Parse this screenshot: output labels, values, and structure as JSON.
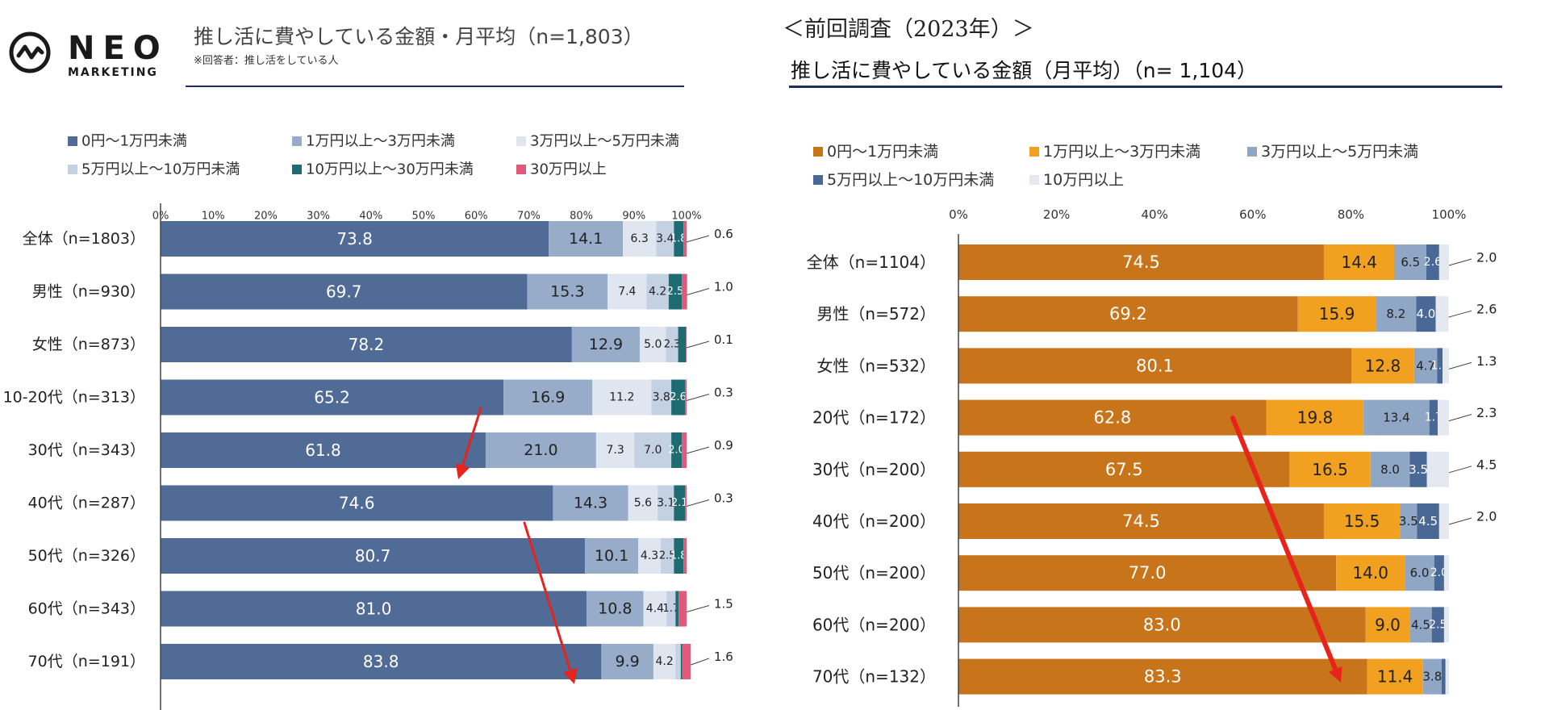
{
  "header": {
    "logo_name": "NEO",
    "logo_sub": "MARKETING",
    "left_title": "推し活に費やしている金額・月平均（n=1,803）",
    "left_note": "※回答者：推し活をしている人",
    "previous_label": "＜前回調査（2023年）＞",
    "right_title": "推し活に費やしている金額（月平均）（n= 1,104）"
  },
  "chart_data": [
    {
      "type": "bar",
      "orientation": "horizontal-stacked-100",
      "title": "推し活に費やしている金額・月平均（n=1,803）",
      "xlim": [
        0,
        100
      ],
      "x_ticks": [
        "0%",
        "10%",
        "20%",
        "30%",
        "40%",
        "50%",
        "60%",
        "70%",
        "80%",
        "90%",
        "100%"
      ],
      "categories": [
        "全体（n=1803）",
        "男性（n=930）",
        "女性（n=873）",
        "10-20代（n=313）",
        "30代（n=343）",
        "40代（n=287）",
        "50代（n=326）",
        "60代（n=343）",
        "70代（n=191）"
      ],
      "series": [
        {
          "name": "0円～1万円未満",
          "color": "#4f6b96",
          "values": [
            73.8,
            69.7,
            78.2,
            65.2,
            61.8,
            74.6,
            80.7,
            81.0,
            83.8
          ]
        },
        {
          "name": "1万円以上～3万円未満",
          "color": "#97acc9",
          "values": [
            14.1,
            15.3,
            12.9,
            16.9,
            21.0,
            14.3,
            10.1,
            10.8,
            9.9
          ]
        },
        {
          "name": "3万円以上～5万円未満",
          "color": "#dfe6f0",
          "values": [
            6.3,
            7.4,
            5.0,
            11.2,
            7.3,
            5.6,
            4.3,
            4.4,
            4.2
          ]
        },
        {
          "name": "5万円以上～10万円未満",
          "color": "#c4d1e2",
          "values": [
            3.4,
            4.2,
            2.3,
            3.8,
            7.0,
            3.1,
            2.5,
            1.7,
            1.0
          ]
        },
        {
          "name": "10万円以上～30万円未満",
          "color": "#1f6b72",
          "values": [
            1.8,
            2.5,
            1.5,
            2.6,
            2.0,
            2.1,
            1.8,
            0.6,
            0.3
          ]
        },
        {
          "name": "30万円以上",
          "color": "#e05a7a",
          "values": [
            0.6,
            1.0,
            0.1,
            0.3,
            0.9,
            0.3,
            0.6,
            1.5,
            1.6
          ]
        }
      ],
      "data_labels": [
        [
          "73.8",
          "14.1",
          "6.3",
          "3.4",
          "1.8",
          "0.6"
        ],
        [
          "69.7",
          "15.3",
          "7.4",
          "4.2",
          "2.5",
          "1.0"
        ],
        [
          "78.2",
          "12.9",
          "5.0",
          "2.3",
          "",
          "0.1"
        ],
        [
          "65.2",
          "16.9",
          "11.2",
          "3.8",
          "2.6",
          "0.3"
        ],
        [
          "61.8",
          "21.0",
          "7.3",
          "7.0",
          "2.0",
          "0.9"
        ],
        [
          "74.6",
          "14.3",
          "5.6",
          "3.1",
          "2.1",
          "0.3"
        ],
        [
          "80.7",
          "10.1",
          "4.3",
          "2.5",
          "1.8",
          ""
        ],
        [
          "81.0",
          "10.8",
          "4.4",
          "1.7",
          "",
          "1.5"
        ],
        [
          "83.8",
          "9.9",
          "4.2",
          "",
          "",
          "1.6"
        ]
      ]
    },
    {
      "type": "bar",
      "orientation": "horizontal-stacked-100",
      "title": "推し活に費やしている金額（月平均）（n= 1,104）",
      "xlim": [
        0,
        100
      ],
      "x_ticks": [
        "0%",
        "20%",
        "40%",
        "60%",
        "80%",
        "100%"
      ],
      "categories": [
        "全体（n=1104）",
        "男性（n=572）",
        "女性（n=532）",
        "20代（n=172）",
        "30代（n=200）",
        "40代（n=200）",
        "50代（n=200）",
        "60代（n=200）",
        "70代（n=132）"
      ],
      "series": [
        {
          "name": "0円～1万円未満",
          "color": "#c8741a",
          "values": [
            74.5,
            69.2,
            80.1,
            62.8,
            67.5,
            74.5,
            77.0,
            83.0,
            83.3
          ]
        },
        {
          "name": "1万円以上～3万円未満",
          "color": "#f2a020",
          "values": [
            14.4,
            15.9,
            12.8,
            19.8,
            16.5,
            15.5,
            14.0,
            9.0,
            11.4
          ]
        },
        {
          "name": "3万円以上～5万円未満",
          "color": "#8fa6c5",
          "values": [
            6.5,
            8.2,
            4.7,
            13.4,
            8.0,
            3.5,
            6.0,
            4.5,
            3.8
          ]
        },
        {
          "name": "5万円以上～10万円未満",
          "color": "#4a6896",
          "values": [
            2.6,
            4.0,
            1.1,
            1.7,
            3.5,
            4.5,
            2.0,
            2.5,
            0.8
          ]
        },
        {
          "name": "10万円以上",
          "color": "#e3e8f1",
          "values": [
            2.0,
            2.6,
            1.3,
            2.3,
            4.5,
            2.0,
            1.0,
            1.0,
            0.7
          ]
        }
      ],
      "data_labels": [
        [
          "74.5",
          "14.4",
          "6.5",
          "2.6",
          "2.0"
        ],
        [
          "69.2",
          "15.9",
          "8.2",
          "4.0",
          "2.6"
        ],
        [
          "80.1",
          "12.8",
          "4.7",
          "1.1",
          "1.3"
        ],
        [
          "62.8",
          "19.8",
          "13.4",
          "1.7",
          "2.3"
        ],
        [
          "67.5",
          "16.5",
          "8.0",
          "3.5",
          "4.5"
        ],
        [
          "74.5",
          "15.5",
          "3.5",
          "4.5",
          "2.0"
        ],
        [
          "77.0",
          "14.0",
          "6.0",
          "2.0",
          ""
        ],
        [
          "83.0",
          "9.0",
          "4.5",
          "2.5",
          ""
        ],
        [
          "83.3",
          "11.4",
          "3.8",
          "",
          ""
        ]
      ]
    }
  ]
}
